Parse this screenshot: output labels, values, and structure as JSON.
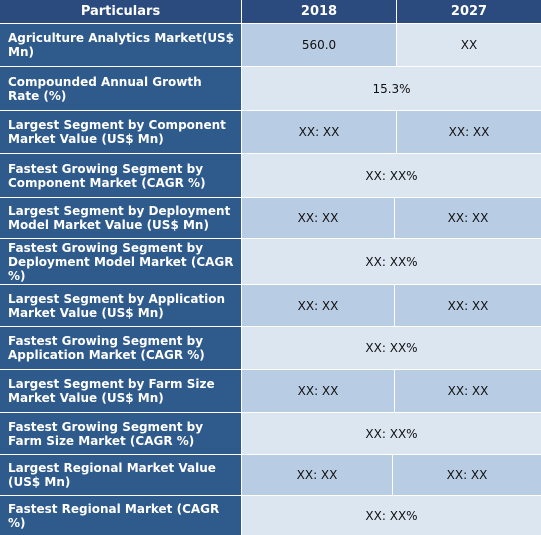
{
  "header": {
    "particulars": "Particulars",
    "year1": "2018",
    "year2": "2027"
  },
  "rows": [
    {
      "label": "Agriculture Analytics Market(US$ Mn)",
      "v2018": "560.0",
      "v2027": "XX"
    },
    {
      "label": "Compounded Annual Growth Rate (%)",
      "merged": "15.3%"
    },
    {
      "label": "Largest Segment by Component Market Value (US$ Mn)",
      "v2018": "XX: XX",
      "v2027": "XX: XX"
    },
    {
      "label": "Fastest Growing Segment by Component Market (CAGR %)",
      "merged": "XX: XX%"
    },
    {
      "label": "Largest Segment by Deployment Model  Market Value (US$ Mn)",
      "v2018": "XX: XX",
      "v2027": "XX: XX"
    },
    {
      "label": "Fastest Growing Segment by Deployment Model Market (CAGR %)",
      "merged": "XX: XX%"
    },
    {
      "label": "Largest Segment by Application Market Value (US$ Mn)",
      "v2018": "XX: XX",
      "v2027": "XX: XX"
    },
    {
      "label": "Fastest Growing Segment by Application Market (CAGR %)",
      "merged": "XX: XX%"
    },
    {
      "label": "Largest Segment by Farm Size Market Value (US$ Mn)",
      "v2018": "XX: XX",
      "v2027": "XX: XX"
    },
    {
      "label": "Fastest Growing Segment by Farm Size Market (CAGR %)",
      "merged": "XX: XX%"
    },
    {
      "label": "Largest Regional Market Value (US$ Mn)",
      "v2018": "XX: XX",
      "v2027": "XX: XX"
    },
    {
      "label": "Fastest Regional Market (CAGR %)",
      "merged": "XX: XX%"
    }
  ]
}
